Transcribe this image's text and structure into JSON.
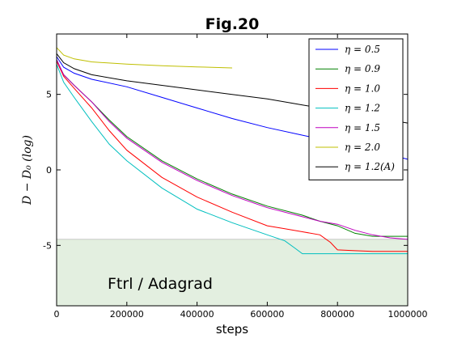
{
  "chart_data": {
    "type": "line",
    "title": "Fig.20",
    "xlabel": "steps",
    "ylabel": "D − D₀ (log)",
    "xlim": [
      0,
      1000000
    ],
    "ylim": [
      -9,
      9
    ],
    "xticks": [
      0,
      200000,
      400000,
      600000,
      800000,
      1000000
    ],
    "yticks": [
      -5,
      0,
      5
    ],
    "grid": false,
    "legend_position": "top-right",
    "shaded_region": {
      "label": "Ftrl / Adagrad",
      "y_range": [
        -9,
        -4.6
      ],
      "color": "#e3efe0"
    },
    "series": [
      {
        "name": "η = 0.5",
        "color": "#0000ff",
        "x": [
          0,
          20000,
          50000,
          100000,
          200000,
          300000,
          400000,
          500000,
          600000,
          700000,
          800000,
          900000,
          1000000
        ],
        "y": [
          7.5,
          6.8,
          6.4,
          6.0,
          5.5,
          4.8,
          4.1,
          3.4,
          2.8,
          2.3,
          1.8,
          1.3,
          0.7
        ]
      },
      {
        "name": "η = 0.9",
        "color": "#008000",
        "x": [
          0,
          20000,
          50000,
          100000,
          150000,
          200000,
          300000,
          400000,
          500000,
          600000,
          700000,
          750000,
          800000,
          850000,
          900000,
          1000000
        ],
        "y": [
          7.3,
          6.3,
          5.6,
          4.5,
          3.3,
          2.2,
          0.6,
          -0.6,
          -1.6,
          -2.4,
          -3.0,
          -3.4,
          -3.7,
          -4.2,
          -4.4,
          -4.4
        ]
      },
      {
        "name": "η = 1.0",
        "color": "#ff0000",
        "x": [
          0,
          20000,
          50000,
          100000,
          150000,
          200000,
          300000,
          400000,
          500000,
          600000,
          650000,
          700000,
          750000,
          780000,
          800000,
          850000,
          900000,
          1000000
        ],
        "y": [
          7.2,
          6.2,
          5.4,
          4.1,
          2.6,
          1.3,
          -0.5,
          -1.8,
          -2.8,
          -3.7,
          -3.9,
          -4.1,
          -4.3,
          -4.8,
          -5.3,
          -5.35,
          -5.4,
          -5.4
        ]
      },
      {
        "name": "η = 1.2",
        "color": "#00bfbf",
        "x": [
          0,
          20000,
          50000,
          100000,
          150000,
          200000,
          300000,
          400000,
          500000,
          550000,
          600000,
          650000,
          680000,
          700000,
          800000,
          900000,
          1000000
        ],
        "y": [
          7.0,
          5.8,
          4.8,
          3.2,
          1.7,
          0.6,
          -1.2,
          -2.6,
          -3.5,
          -3.9,
          -4.3,
          -4.7,
          -5.2,
          -5.55,
          -5.55,
          -5.55,
          -5.55
        ]
      },
      {
        "name": "η = 1.5",
        "color": "#bf00bf",
        "x": [
          0,
          20000,
          50000,
          100000,
          150000,
          200000,
          300000,
          400000,
          500000,
          600000,
          700000,
          750000,
          800000,
          850000,
          900000,
          950000,
          1000000
        ],
        "y": [
          7.3,
          6.3,
          5.6,
          4.5,
          3.2,
          2.1,
          0.5,
          -0.7,
          -1.7,
          -2.5,
          -3.1,
          -3.4,
          -3.6,
          -4.0,
          -4.3,
          -4.5,
          -4.6
        ]
      },
      {
        "name": "η = 2.0",
        "color": "#bfbf00",
        "x": [
          0,
          20000,
          50000,
          100000,
          200000,
          300000,
          400000,
          500000
        ],
        "y": [
          8.1,
          7.6,
          7.35,
          7.15,
          7.0,
          6.9,
          6.82,
          6.75
        ]
      },
      {
        "name": "η = 1.2(A)",
        "color": "#000000",
        "x": [
          0,
          20000,
          50000,
          100000,
          200000,
          300000,
          400000,
          500000,
          600000,
          700000,
          800000,
          900000,
          1000000
        ],
        "y": [
          7.7,
          7.1,
          6.7,
          6.3,
          5.9,
          5.6,
          5.3,
          5.0,
          4.7,
          4.3,
          3.9,
          3.5,
          3.1
        ]
      }
    ]
  }
}
